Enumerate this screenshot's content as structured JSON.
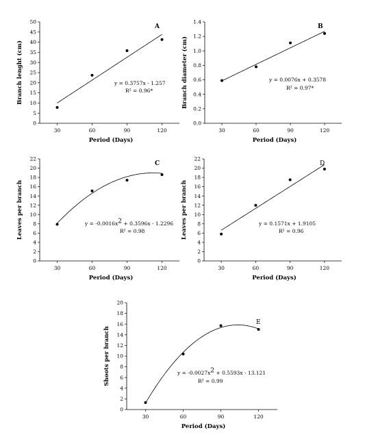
{
  "chart_data": [
    {
      "type": "scatter",
      "panel_label": "A",
      "xlabel": "Period (Days)",
      "ylabel": "Branch lenght (cm)",
      "categories": [
        "30",
        "60",
        "90",
        "120"
      ],
      "x": [
        30,
        60,
        90,
        120
      ],
      "y": [
        7.8,
        23.7,
        35.8,
        41.3
      ],
      "xlim": [
        15,
        135
      ],
      "ylim": [
        0,
        50
      ],
      "yticks": [
        "0",
        "5",
        "10",
        "15",
        "20",
        "25",
        "30",
        "35",
        "40",
        "45",
        "50"
      ],
      "trend": {
        "kind": "linear",
        "coef": [
          0.3757,
          -1.257
        ]
      },
      "equation": "y = 0.3757x - 1.257",
      "r2": "R² = 0.96*",
      "grid": false
    },
    {
      "type": "scatter",
      "panel_label": "B",
      "xlabel": "Period (Days)",
      "ylabel": "Branch diameter (cm)",
      "categories": [
        "30",
        "60",
        "90",
        "120"
      ],
      "x": [
        30,
        60,
        90,
        120
      ],
      "y": [
        0.59,
        0.78,
        1.11,
        1.24
      ],
      "xlim": [
        15,
        135
      ],
      "ylim": [
        0,
        1.4
      ],
      "yticks": [
        "0.0",
        "0.2",
        "0.4",
        "0.6",
        "0.8",
        "1.0",
        "1.2",
        "1.4"
      ],
      "trend": {
        "kind": "linear",
        "coef": [
          0.0076,
          0.3578
        ]
      },
      "equation": "y = 0.0076x + 0.3578",
      "r2": "R² = 0.97*",
      "grid": false
    },
    {
      "type": "scatter",
      "panel_label": "C",
      "xlabel": "Period (Days)",
      "ylabel": "Leaves per branch",
      "categories": [
        "30",
        "60",
        "90",
        "120"
      ],
      "x": [
        30,
        60,
        90,
        120
      ],
      "y": [
        7.9,
        15.1,
        17.4,
        18.6
      ],
      "xlim": [
        15,
        135
      ],
      "ylim": [
        0,
        22
      ],
      "yticks": [
        "0",
        "2",
        "4",
        "6",
        "8",
        "10",
        "12",
        "14",
        "16",
        "18",
        "20",
        "22"
      ],
      "trend": {
        "kind": "quadratic",
        "coef": [
          -0.0016,
          0.3596,
          -1.2296
        ]
      },
      "equation": "y = -0.0016x2 + 0.3596x - 1.2296",
      "eq_parts": [
        "y = -0.0016x",
        "2",
        " + 0.3596x - 1.2296"
      ],
      "r2": "R² = 0.98",
      "grid": false
    },
    {
      "type": "scatter",
      "panel_label": "D",
      "xlabel": "Period (Days)",
      "ylabel": "Leaves per branch",
      "categories": [
        "30",
        "60",
        "90",
        "120"
      ],
      "x": [
        30,
        60,
        90,
        120
      ],
      "y": [
        5.8,
        12.0,
        17.5,
        19.8
      ],
      "xlim": [
        15,
        135
      ],
      "ylim": [
        0,
        22
      ],
      "yticks": [
        "0",
        "2",
        "4",
        "6",
        "8",
        "10",
        "12",
        "14",
        "16",
        "18",
        "20",
        "22"
      ],
      "trend": {
        "kind": "linear",
        "coef": [
          0.1571,
          1.9105
        ]
      },
      "equation": "y = 0.1571x + 1.9105",
      "r2": "R² = 0.96",
      "grid": false
    },
    {
      "type": "scatter",
      "panel_label": "E",
      "xlabel": "Period (Days)",
      "ylabel": "Shoots per branch",
      "categories": [
        "30",
        "60",
        "90",
        "120"
      ],
      "x": [
        30,
        60,
        90,
        120
      ],
      "y": [
        1.3,
        10.4,
        15.7,
        15.0
      ],
      "xlim": [
        15,
        135
      ],
      "ylim": [
        0,
        20
      ],
      "yticks": [
        "0",
        "2",
        "4",
        "6",
        "8",
        "10",
        "12",
        "14",
        "16",
        "18",
        "20"
      ],
      "trend": {
        "kind": "quadratic",
        "coef": [
          -0.0027,
          0.5593,
          -13.121
        ]
      },
      "equation": "y = -0.0027x2 + 0.5593x - 13.121",
      "eq_parts": [
        "y = -0.0027x",
        "2",
        " + 0.5593x - 13.121"
      ],
      "r2": "R² = 0.99",
      "grid": false
    }
  ]
}
